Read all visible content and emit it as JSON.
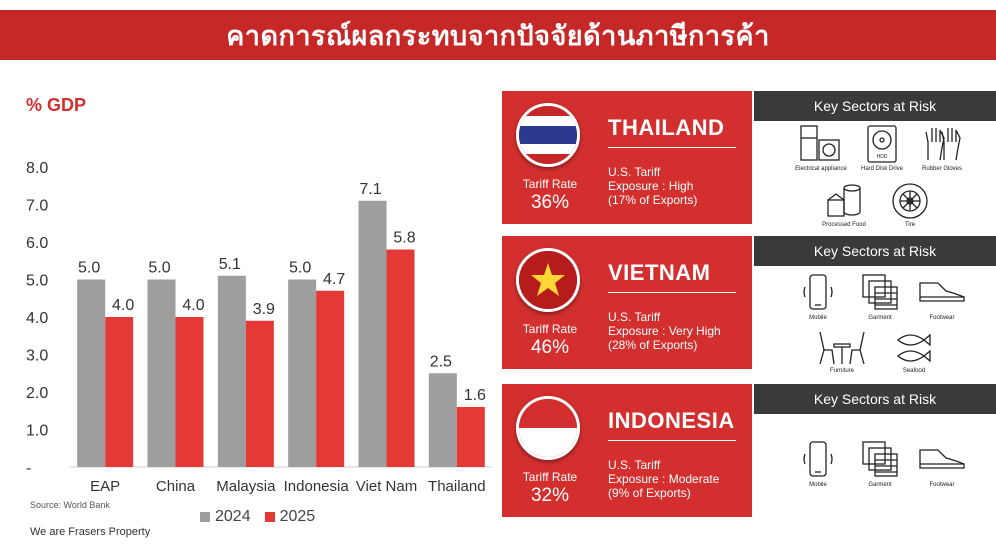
{
  "header": {
    "title": "คาดการณ์ผลกระทบจากปัจจัยด้านภาษีการค้า"
  },
  "unit_label": "% GDP",
  "chart_data": {
    "type": "bar",
    "categories": [
      "EAP",
      "China",
      "Malaysia",
      "Indonesia",
      "Viet Nam",
      "Thailand"
    ],
    "series": [
      {
        "name": "2024",
        "values": [
          5.0,
          5.0,
          5.1,
          5.0,
          7.1,
          2.5
        ],
        "color": "#9e9e9e"
      },
      {
        "name": "2025",
        "values": [
          4.0,
          4.0,
          3.9,
          4.7,
          5.8,
          1.6
        ],
        "color": "#e53935"
      }
    ],
    "y_ticks": [
      "-",
      "1.0",
      "2.0",
      "3.0",
      "4.0",
      "5.0",
      "6.0",
      "7.0",
      "8.0"
    ],
    "ylim": [
      0,
      8
    ],
    "legend": "bottom"
  },
  "source": "Source: World Bank",
  "footer": "We are Frasers Property",
  "countries": [
    {
      "name": "THAILAND",
      "tariff_label": "Tariff Rate",
      "tariff_value": "36%",
      "exposure_1": "U.S. Tariff",
      "exposure_2": "Exposure : High",
      "exposure_3": "(17% of Exports)",
      "sector_title": "Key Sectors at Risk",
      "sectors": [
        "Electrical appliance",
        "Hard Disk Drive",
        "Rubber Gloves",
        "Processed Food",
        "Tire"
      ]
    },
    {
      "name": "VIETNAM",
      "tariff_label": "Tariff Rate",
      "tariff_value": "46%",
      "exposure_1": "U.S. Tariff",
      "exposure_2": "Exposure : Very High",
      "exposure_3": "(28% of Exports)",
      "sector_title": "Key Sectors at Risk",
      "sectors": [
        "Mobile",
        "Garment",
        "Footwear",
        "Furniture",
        "Seafood"
      ]
    },
    {
      "name": "INDONESIA",
      "tariff_label": "Tariff Rate",
      "tariff_value": "32%",
      "exposure_1": "U.S. Tariff",
      "exposure_2": "Exposure : Moderate",
      "exposure_3": "(9% of Exports)",
      "sector_title": "Key Sectors at Risk",
      "sectors": [
        "Mobile",
        "Garment",
        "Footwear"
      ]
    }
  ],
  "icons": {
    "thailand": [
      "appliance-icon",
      "hard-disk-icon",
      "gloves-icon",
      "processed-food-icon",
      "tire-icon"
    ],
    "vietnam": [
      "mobile-icon",
      "garment-icon",
      "footwear-icon",
      "furniture-icon",
      "seafood-icon"
    ],
    "indonesia": [
      "mobile-icon",
      "garment-icon",
      "footwear-icon"
    ]
  },
  "hdd_label": "HDD"
}
